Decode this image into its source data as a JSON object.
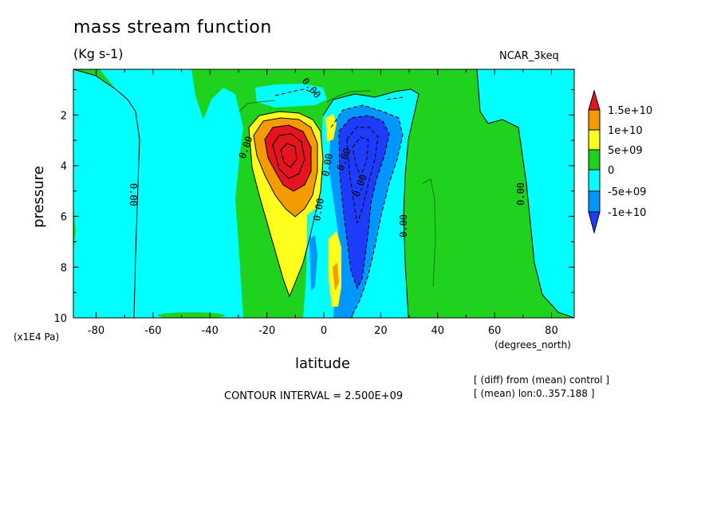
{
  "header": {
    "title": "mass stream function",
    "units": "(Kg s-1)",
    "run": "NCAR_3keq"
  },
  "footer": {
    "contour_interval": "CONTOUR INTERVAL = 2.500E+09",
    "note1": "[ (diff) from (mean) control ]",
    "note2": "[ (mean) lon:0..357.188 ]"
  },
  "colors": {
    "red": "#e6141e",
    "orange": "#f59b00",
    "yellow": "#ffff1e",
    "green": "#1ed21e",
    "cyan": "#00ffff",
    "blue": "#0096ff",
    "darkblue": "#1e3cff"
  },
  "chart_data": {
    "type": "heatmap",
    "title": "mass stream function",
    "subtitle": "(Kg s-1)",
    "xlabel": "latitude",
    "xunits": "(degrees_north)",
    "ylabel": "pressure",
    "yunits": "(x1E4 Pa)",
    "xlim": [
      -88,
      88
    ],
    "ylim": [
      0.2,
      10
    ],
    "y_inverted": true,
    "xticks": [
      -80,
      -60,
      -40,
      -20,
      0,
      20,
      40,
      60,
      80
    ],
    "yticks": [
      2,
      4,
      6,
      8,
      10
    ],
    "contour_interval": 2500000000.0,
    "contour_labels": [
      "0.00",
      "0.00",
      "0.00",
      "0.00",
      "0.00",
      "0.00",
      "0.00",
      "0.00",
      "0.00"
    ],
    "colorbar": {
      "labels": [
        "1.5e+10",
        "1e+10",
        "5e+09",
        "0",
        "-5e+09",
        "-1e+10"
      ],
      "levels": [
        15000000000.0,
        10000000000.0,
        5000000000.0,
        0,
        -5000000000.0,
        -10000000000.0
      ]
    },
    "features": [
      {
        "name": "southern cell",
        "sign": "positive",
        "lat_center": -12,
        "pressure_center": 3.5,
        "max": 15000000000.0
      },
      {
        "name": "northern cell",
        "sign": "negative",
        "lat_center": 12,
        "pressure_center": 5,
        "min": -10000000000.0
      }
    ]
  }
}
